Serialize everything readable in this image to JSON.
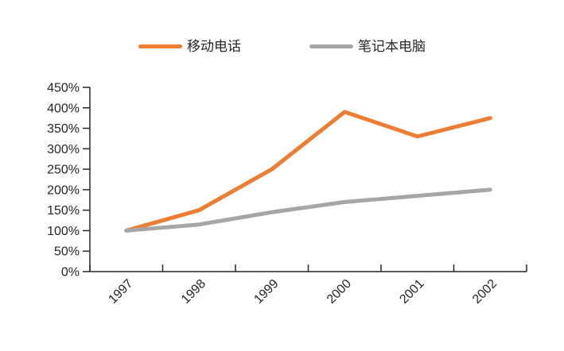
{
  "chart_data": {
    "type": "line",
    "title": "",
    "xlabel": "",
    "ylabel": "",
    "categories": [
      "1997",
      "1998",
      "1999",
      "2000",
      "2001",
      "2002"
    ],
    "series": [
      {
        "name": "移动电话",
        "color": "#ED7D31",
        "values": [
          100,
          150,
          250,
          390,
          330,
          375
        ]
      },
      {
        "name": "笔记本电脑",
        "color": "#A6A6A6",
        "values": [
          100,
          115,
          145,
          170,
          185,
          200
        ]
      }
    ],
    "ylim": [
      0,
      450
    ],
    "ytick_step": 50,
    "ytick_labels": [
      "0%",
      "50%",
      "100%",
      "150%",
      "200%",
      "250%",
      "300%",
      "350%",
      "400%",
      "450%"
    ],
    "grid": false,
    "legend_position": "top",
    "x_labels_rotation_deg": -45
  },
  "legend": {
    "items": [
      {
        "label": "移动电话",
        "color": "#ED7D31"
      },
      {
        "label": "笔记本电脑",
        "color": "#A6A6A6"
      }
    ]
  },
  "styles": {
    "background": "#FFFFFF",
    "axis_color": "#262626",
    "text_color": "#262626",
    "line_width": 5
  }
}
